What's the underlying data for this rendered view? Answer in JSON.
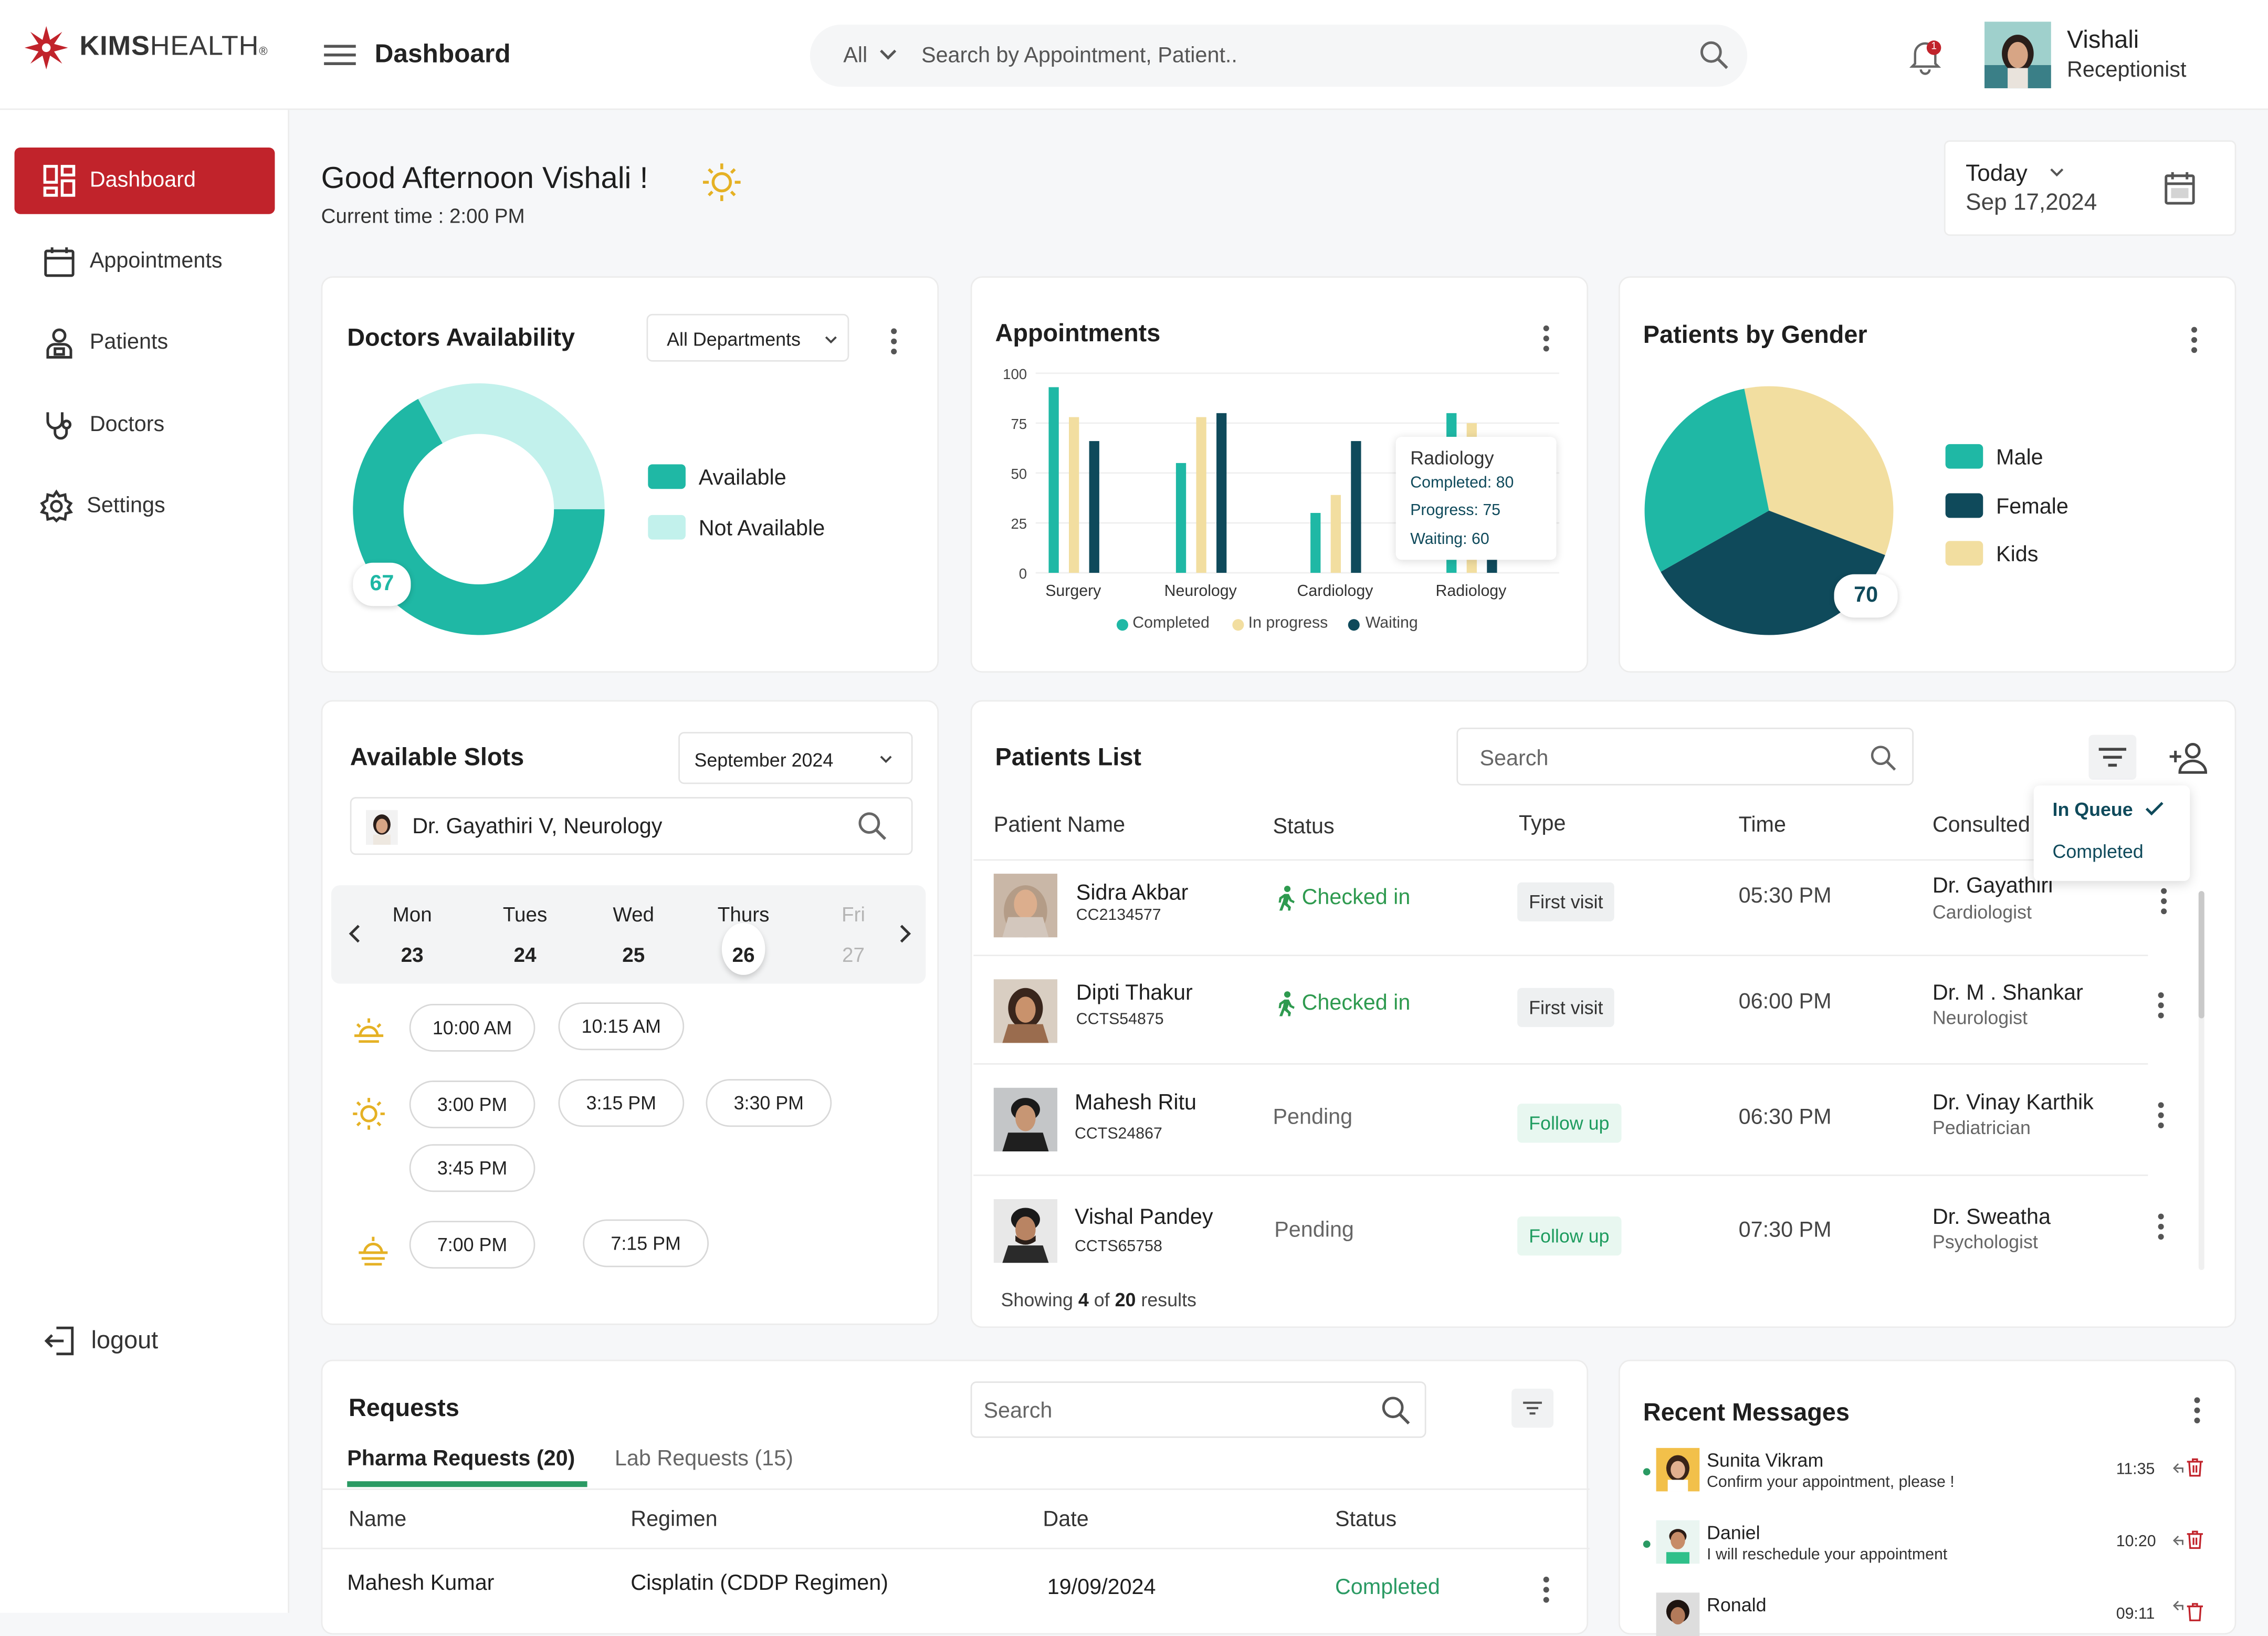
{
  "header": {
    "brand_bold": "KIMS",
    "brand_light": "HEALTH",
    "brand_tm": "®",
    "page_title": "Dashboard",
    "search_scope": "All",
    "search_placeholder": "Search by Appointment, Patient..",
    "notification_count": "1",
    "user_name": "Vishali",
    "user_role": "Receptionist"
  },
  "sidebar": {
    "items": [
      {
        "label": "Dashboard",
        "icon": "dashboard-icon",
        "active": true
      },
      {
        "label": "Appointments",
        "icon": "calendar-icon"
      },
      {
        "label": "Patients",
        "icon": "patient-icon"
      },
      {
        "label": "Doctors",
        "icon": "stethoscope-icon"
      },
      {
        "label": "Settings",
        "icon": "gear-icon"
      }
    ],
    "logout_label": "logout"
  },
  "greeting": {
    "text": "Good Afternoon Vishali !",
    "current_time": "Current time : 2:00 PM"
  },
  "date_picker": {
    "label": "Today",
    "date": "Sep 17,2024"
  },
  "doctors_availability": {
    "title": "Doctors Availability",
    "filter": "All Departments",
    "badge": "67",
    "legend": [
      "Available",
      "Not Available"
    ],
    "colors": {
      "available": "#1fb8a5",
      "not_available": "#c2f1ec"
    },
    "chart_data": {
      "type": "pie",
      "categories": [
        "Available",
        "Not Available"
      ],
      "values": [
        67,
        33
      ]
    }
  },
  "appointments": {
    "title": "Appointments",
    "tooltip": {
      "title": "Radiology",
      "completed": "Completed: 80",
      "progress": "Progress: 75",
      "waiting": "Waiting: 60"
    },
    "legend": [
      "Completed",
      "In progress",
      "Waiting"
    ],
    "colors": {
      "completed": "#1fb8a5",
      "in_progress": "#f2dea0",
      "waiting": "#0f4a5b"
    },
    "chart_data": {
      "type": "bar",
      "categories": [
        "Surgery",
        "Neurology",
        "Cardiology",
        "Radiology"
      ],
      "series": [
        {
          "name": "Completed",
          "values": [
            93,
            55,
            30,
            80
          ]
        },
        {
          "name": "In progress",
          "values": [
            78,
            78,
            39,
            75
          ]
        },
        {
          "name": "Waiting",
          "values": [
            66,
            80,
            66,
            60
          ]
        }
      ],
      "yticks": [
        "100",
        "75",
        "50",
        "25",
        "0"
      ],
      "ylim": [
        0,
        100
      ]
    }
  },
  "patients_by_gender": {
    "title": "Patients by Gender",
    "badge": "70",
    "legend": [
      "Male",
      "Female",
      "Kids"
    ],
    "colors": {
      "male": "#1fb8a5",
      "female": "#0f4a5b",
      "kids": "#f2dea0"
    },
    "chart_data": {
      "type": "pie",
      "categories": [
        "Male",
        "Female",
        "Kids"
      ],
      "values": [
        30,
        36,
        34
      ]
    }
  },
  "slots": {
    "title": "Available Slots",
    "month": "September 2024",
    "doctor": "Dr. Gayathiri V, Neurology",
    "days": [
      {
        "name": "Mon",
        "num": "23"
      },
      {
        "name": "Tues",
        "num": "24"
      },
      {
        "name": "Wed",
        "num": "25"
      },
      {
        "name": "Thurs",
        "num": "26"
      },
      {
        "name": "Fri",
        "num": "27"
      }
    ],
    "morning": [
      "10:00 AM",
      "10:15 AM"
    ],
    "afternoon": [
      "3:00 PM",
      "3:15 PM",
      "3:30 PM",
      "3:45 PM"
    ],
    "evening": [
      "7:00 PM",
      "7:15 PM"
    ]
  },
  "patients_list": {
    "title": "Patients List",
    "search_placeholder": "Search",
    "columns": [
      "Patient Name",
      "Status",
      "Type",
      "Time",
      "Consulted"
    ],
    "filter_options": [
      "In Queue",
      "Completed"
    ],
    "rows": [
      {
        "name": "Sidra Akbar",
        "id": "CC2134577",
        "status": "Checked in",
        "type": "First visit",
        "time": "05:30 PM",
        "doctor": "Dr. Gayathiri",
        "specialty": "Cardiologist"
      },
      {
        "name": "Dipti Thakur",
        "id": "CCTS54875",
        "status": "Checked in",
        "type": "First visit",
        "time": "06:00 PM",
        "doctor": "Dr. M . Shankar",
        "specialty": "Neurologist"
      },
      {
        "name": "Mahesh Ritu",
        "id": "CCTS24867",
        "status": "Pending",
        "type": "Follow up",
        "time": "06:30 PM",
        "doctor": "Dr. Vinay Karthik",
        "specialty": "Pediatrician"
      },
      {
        "name": "Vishal Pandey",
        "id": "CCTS65758",
        "status": "Pending",
        "type": "Follow up",
        "time": "07:30 PM",
        "doctor": "Dr. Sweatha",
        "specialty": "Psychologist"
      }
    ],
    "footer_pre": "Showing ",
    "footer_shown": "4",
    "footer_mid": " of ",
    "footer_total": "20",
    "footer_post": " results"
  },
  "requests": {
    "title": "Requests",
    "search_placeholder": "Search",
    "tabs": [
      "Pharma Requests (20)",
      "Lab Requests (15)"
    ],
    "columns": [
      "Name",
      "Regimen",
      "Date",
      "Status"
    ],
    "rows": [
      {
        "name": "Mahesh Kumar",
        "regimen": "Cisplatin (CDDP Regimen)",
        "date": "19/09/2024",
        "status": "Completed"
      }
    ]
  },
  "messages": {
    "title": "Recent Messages",
    "items": [
      {
        "name": "Sunita Vikram",
        "text": "Confirm your appointment, please !",
        "time": "11:35"
      },
      {
        "name": "Daniel",
        "text": "I will reschedule your appointment",
        "time": "10:20"
      },
      {
        "name": "Ronald",
        "text": "",
        "time": "09:11"
      }
    ]
  }
}
